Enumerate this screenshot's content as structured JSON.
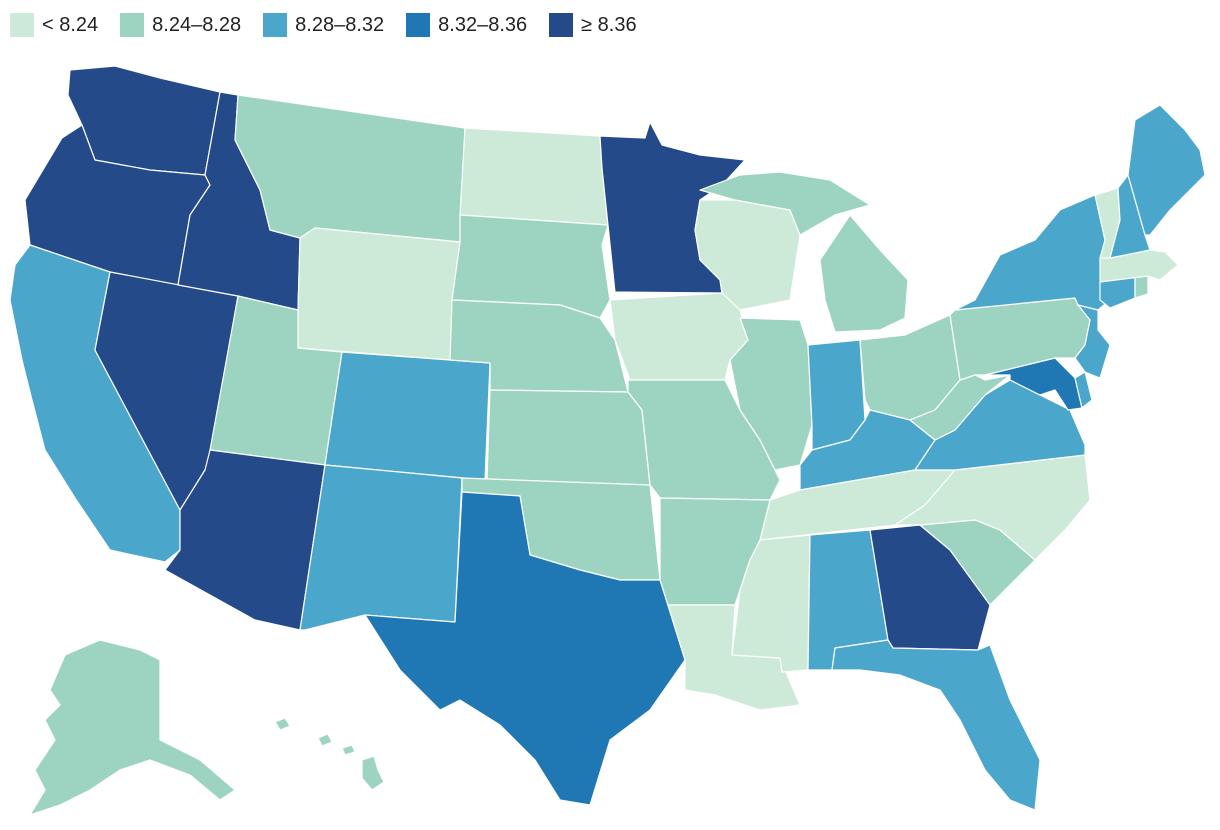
{
  "legend": [
    {
      "label": "< 8.24",
      "color": "#cde9d8"
    },
    {
      "label": "8.24–8.28",
      "color": "#9dd4c1"
    },
    {
      "label": "8.28–8.32",
      "color": "#4aa6ca"
    },
    {
      "label": "8.32–8.36",
      "color": "#1f77b4"
    },
    {
      "label": "≥ 8.36",
      "color": "#244a8a"
    }
  ],
  "state_bins": {
    "Washington": 4,
    "Oregon": 4,
    "Idaho": 4,
    "Nevada": 4,
    "Arizona": 4,
    "Minnesota": 4,
    "Georgia": 4,
    "Texas": 3,
    "Maryland": 3,
    "California": 2,
    "Colorado": 2,
    "New Mexico": 2,
    "Indiana": 2,
    "Kentucky": 2,
    "Virginia": 2,
    "Alabama": 2,
    "Florida": 2,
    "New York": 2,
    "New Jersey": 2,
    "Connecticut": 2,
    "Maine": 2,
    "New Hampshire": 2,
    "Delaware": 2,
    "Montana": 1,
    "Utah": 1,
    "South Dakota": 1,
    "Nebraska": 1,
    "Kansas": 1,
    "Oklahoma": 1,
    "Missouri": 1,
    "Arkansas": 1,
    "Illinois": 1,
    "Michigan": 1,
    "Ohio": 1,
    "Pennsylvania": 1,
    "West Virginia": 1,
    "South Carolina": 1,
    "Alaska": 1,
    "Hawaii": 1,
    "Rhode Island": 1,
    "Wyoming": 0,
    "North Dakota": 0,
    "Iowa": 0,
    "Wisconsin": 0,
    "Louisiana": 0,
    "Mississippi": 0,
    "Tennessee": 0,
    "North Carolina": 0,
    "Vermont": 0,
    "Massachusetts": 0
  }
}
